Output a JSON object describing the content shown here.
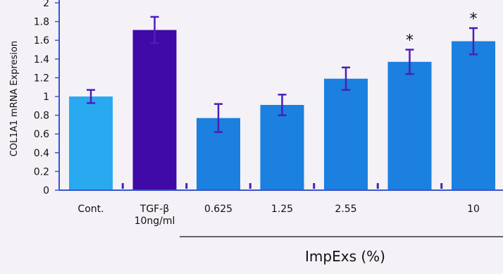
{
  "chart_data": {
    "type": "bar",
    "ylabel": "COL1A1 mRNA Expresion",
    "ylim": [
      0,
      2
    ],
    "yticks": [
      "0",
      "0.2",
      "0.4",
      "0.6",
      "0.8",
      "1",
      "1.2",
      "1.4",
      "1.6",
      "1.8",
      "2"
    ],
    "categories": [
      "Cont.",
      "TGF-β",
      "0.625",
      "1.25",
      "2.55",
      "",
      "10"
    ],
    "category_sublabels": [
      "",
      "10ng/ml",
      "",
      "",
      "",
      "",
      ""
    ],
    "values": [
      1.0,
      1.71,
      0.77,
      0.91,
      1.19,
      1.37,
      1.59
    ],
    "errors": [
      0.07,
      0.14,
      0.15,
      0.11,
      0.12,
      0.13,
      0.14
    ],
    "significance": [
      "",
      "",
      "",
      "",
      "",
      "*",
      "*"
    ],
    "bar_colors": [
      "#29aaf0",
      "#3f0aa8",
      "#1b80e0",
      "#1b80e0",
      "#1b80e0",
      "#1b80e0",
      "#1b80e0"
    ],
    "category_label_colors": [
      "#111111",
      "#3a56c8",
      "#111111",
      "#111111",
      "#111111",
      "#111111",
      "#111111"
    ],
    "axis_color": "#3a56c8",
    "error_bar_color": "#4b1fb8",
    "group_label": "ImpExs (%)",
    "grid": false,
    "legend": "none"
  }
}
